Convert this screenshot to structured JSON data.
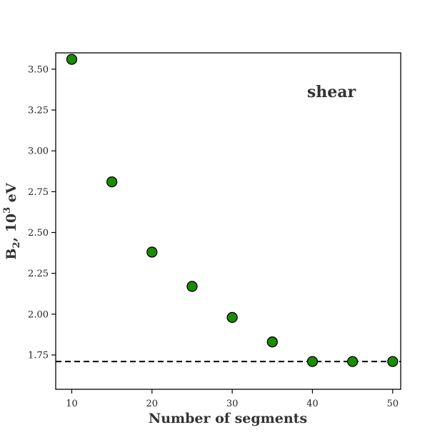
{
  "chart_data": {
    "type": "scatter",
    "title": "",
    "xlabel": "Number of segments",
    "ylabel_main": "B",
    "ylabel_sub": "2",
    "ylabel_mid": ", 10",
    "ylabel_sup": "3",
    "ylabel_tail": " eV",
    "annotation": "shear",
    "xlim": [
      8,
      51
    ],
    "ylim": [
      1.54,
      3.6
    ],
    "xticks": [
      10,
      20,
      30,
      40,
      50
    ],
    "xtick_labels": [
      "10",
      "20",
      "30",
      "40",
      "50"
    ],
    "yticks": [
      1.75,
      2.0,
      2.25,
      2.5,
      2.75,
      3.0,
      3.25,
      3.5
    ],
    "ytick_labels": [
      "1.75",
      "2.00",
      "2.25",
      "2.50",
      "2.75",
      "3.00",
      "3.25",
      "3.50"
    ],
    "x": [
      10,
      15,
      20,
      25,
      30,
      35,
      40,
      45,
      50
    ],
    "y": [
      3.56,
      2.81,
      2.38,
      2.17,
      1.98,
      1.83,
      1.71,
      1.71,
      1.71
    ],
    "reference_line": 1.71,
    "grid": false,
    "marker_color": "#1a8c00",
    "marker_edge": "#000000"
  }
}
